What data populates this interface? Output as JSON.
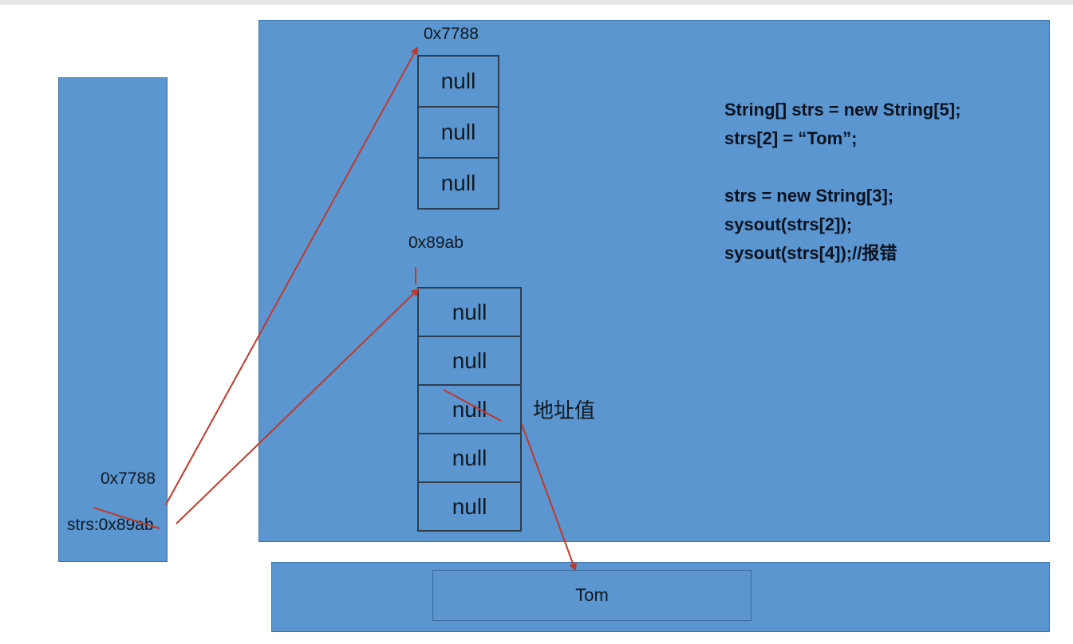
{
  "stack": {
    "old_ref_value": "0x7788",
    "variable_text": "strs:0x89ab"
  },
  "heap": {
    "array1": {
      "address": "0x7788",
      "cells": [
        "null",
        "null",
        "null"
      ]
    },
    "array2": {
      "address": "0x89ab",
      "cells": [
        "null",
        "null",
        "null",
        "null",
        "null"
      ]
    },
    "annotation": "地址值"
  },
  "code": [
    "String[] strs = new String[5];",
    "strs[2] = “Tom”;",
    "",
    "strs = new String[3];",
    "sysout(strs[2]);",
    "sysout(strs[4]);//报错"
  ],
  "string_pool": {
    "value": "Tom"
  },
  "colors": {
    "region": "#5b96d0",
    "arrow": "#c0392b"
  }
}
